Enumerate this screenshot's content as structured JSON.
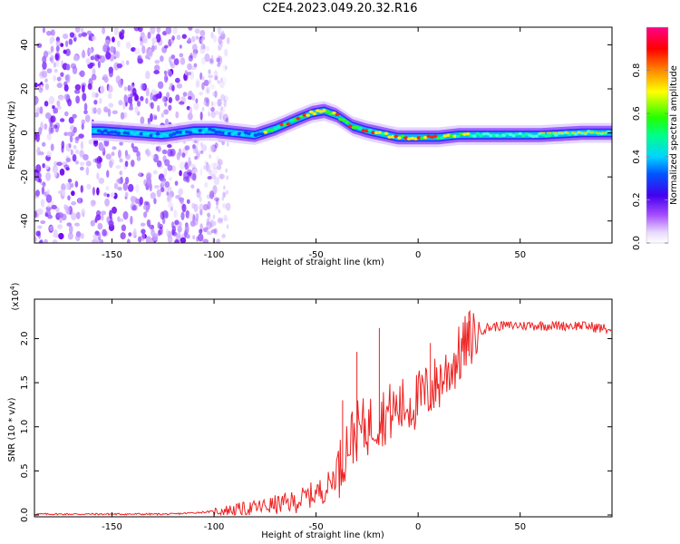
{
  "title": "C2E4.2023.049.20.32.R16",
  "chart_data": [
    {
      "type": "heatmap",
      "name": "spectrogram",
      "xlabel": "Height of straight line (km)",
      "ylabel": "Frequency (Hz)",
      "xlim": [
        -188,
        95
      ],
      "ylim": [
        -50,
        48
      ],
      "xticks": [
        -150,
        -100,
        -50,
        0,
        50
      ],
      "xtick_labels": [
        "-150",
        "-100",
        "-50",
        "0",
        "50"
      ],
      "yticks": [
        -40,
        -20,
        0,
        20,
        40
      ],
      "ytick_labels": [
        "-40",
        "-20",
        "0",
        "20",
        "40"
      ],
      "ridge": {
        "x": [
          -155,
          -140,
          -125,
          -110,
          -100,
          -90,
          -80,
          -70,
          -60,
          -52,
          -46,
          -40,
          -32,
          -25,
          -20,
          -15,
          -10,
          0,
          10,
          20,
          40,
          60,
          80,
          95
        ],
        "y": [
          1,
          0,
          -1,
          1,
          1,
          0,
          -1,
          2,
          6,
          9,
          10,
          8,
          3,
          1,
          0,
          -1,
          -2,
          -2,
          -2,
          -1,
          -1,
          -1,
          0,
          0
        ]
      },
      "colorbar": {
        "label": "Normalized spectral amplitude",
        "range": [
          0,
          1
        ],
        "ticks": [
          0.0,
          0.2,
          0.4,
          0.6,
          0.8
        ],
        "tick_labels": [
          "0.0",
          "0.2",
          "0.4",
          "0.6",
          "0.8"
        ]
      }
    },
    {
      "type": "line",
      "name": "snr",
      "xlabel": "Height of straight line (km)",
      "ylabel": "SNR (10 * v/v)",
      "y_multiplier_label": "(x10",
      "y_multiplier_exp": "4",
      "y_multiplier_close": ")",
      "xlim": [
        -188,
        95
      ],
      "ylim": [
        0,
        2.2
      ],
      "xticks": [
        -150,
        -100,
        -50,
        0,
        50
      ],
      "xtick_labels": [
        "-150",
        "-100",
        "-50",
        "0",
        "50"
      ],
      "yticks": [
        0.0,
        0.5,
        1.0,
        1.5,
        2.0
      ],
      "ytick_labels": [
        "0.0",
        "0.5",
        "1.0",
        "1.5",
        "2.0"
      ],
      "color": "#ee2222",
      "envelope": {
        "x": [
          -188,
          -120,
          -100,
          -80,
          -60,
          -45,
          -38,
          -35,
          -30,
          -25,
          -20,
          -10,
          0,
          10,
          20,
          25,
          30,
          40,
          60,
          80,
          95
        ],
        "y": [
          0.01,
          0.01,
          0.04,
          0.08,
          0.15,
          0.3,
          0.55,
          0.8,
          0.95,
          1.0,
          1.1,
          1.2,
          1.3,
          1.5,
          1.8,
          2.0,
          2.1,
          2.15,
          2.15,
          2.15,
          2.1
        ]
      },
      "spikes": [
        {
          "x": -19,
          "y": 2.12
        },
        {
          "x": -30,
          "y": 1.85
        },
        {
          "x": 6,
          "y": 1.95
        },
        {
          "x": 25,
          "y": 2.2
        },
        {
          "x": -37,
          "y": 1.3
        }
      ]
    }
  ]
}
